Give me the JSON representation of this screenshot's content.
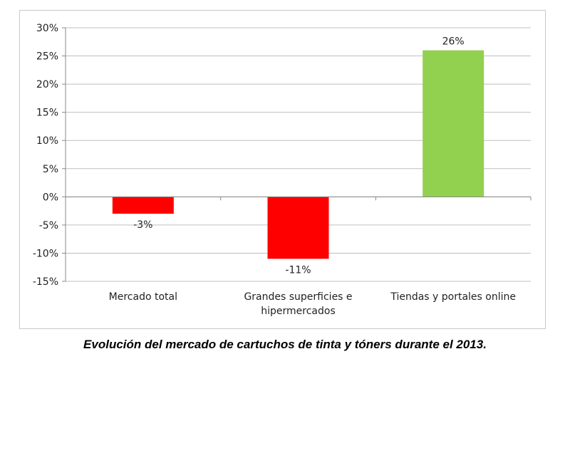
{
  "caption": "Evolución del mercado de cartuchos de tinta y tóners durante el 2013.",
  "chart_data": {
    "type": "bar",
    "title": "",
    "xlabel": "",
    "ylabel": "",
    "ylim": [
      -15,
      30
    ],
    "ytick_step": 5,
    "yticks": [
      "30%",
      "25%",
      "20%",
      "15%",
      "10%",
      "5%",
      "0%",
      "-5%",
      "-10%",
      "-15%"
    ],
    "grid": true,
    "legend": "none",
    "categories": [
      [
        "Mercado total"
      ],
      [
        "Grandes superficies e",
        "hipermercados"
      ],
      [
        "Tiendas y portales online"
      ]
    ],
    "values": [
      -3,
      -11,
      26
    ],
    "data_labels": [
      "-3%",
      "-11%",
      "26%"
    ],
    "colors": [
      "#ff0000",
      "#ff0000",
      "#92d050"
    ]
  }
}
